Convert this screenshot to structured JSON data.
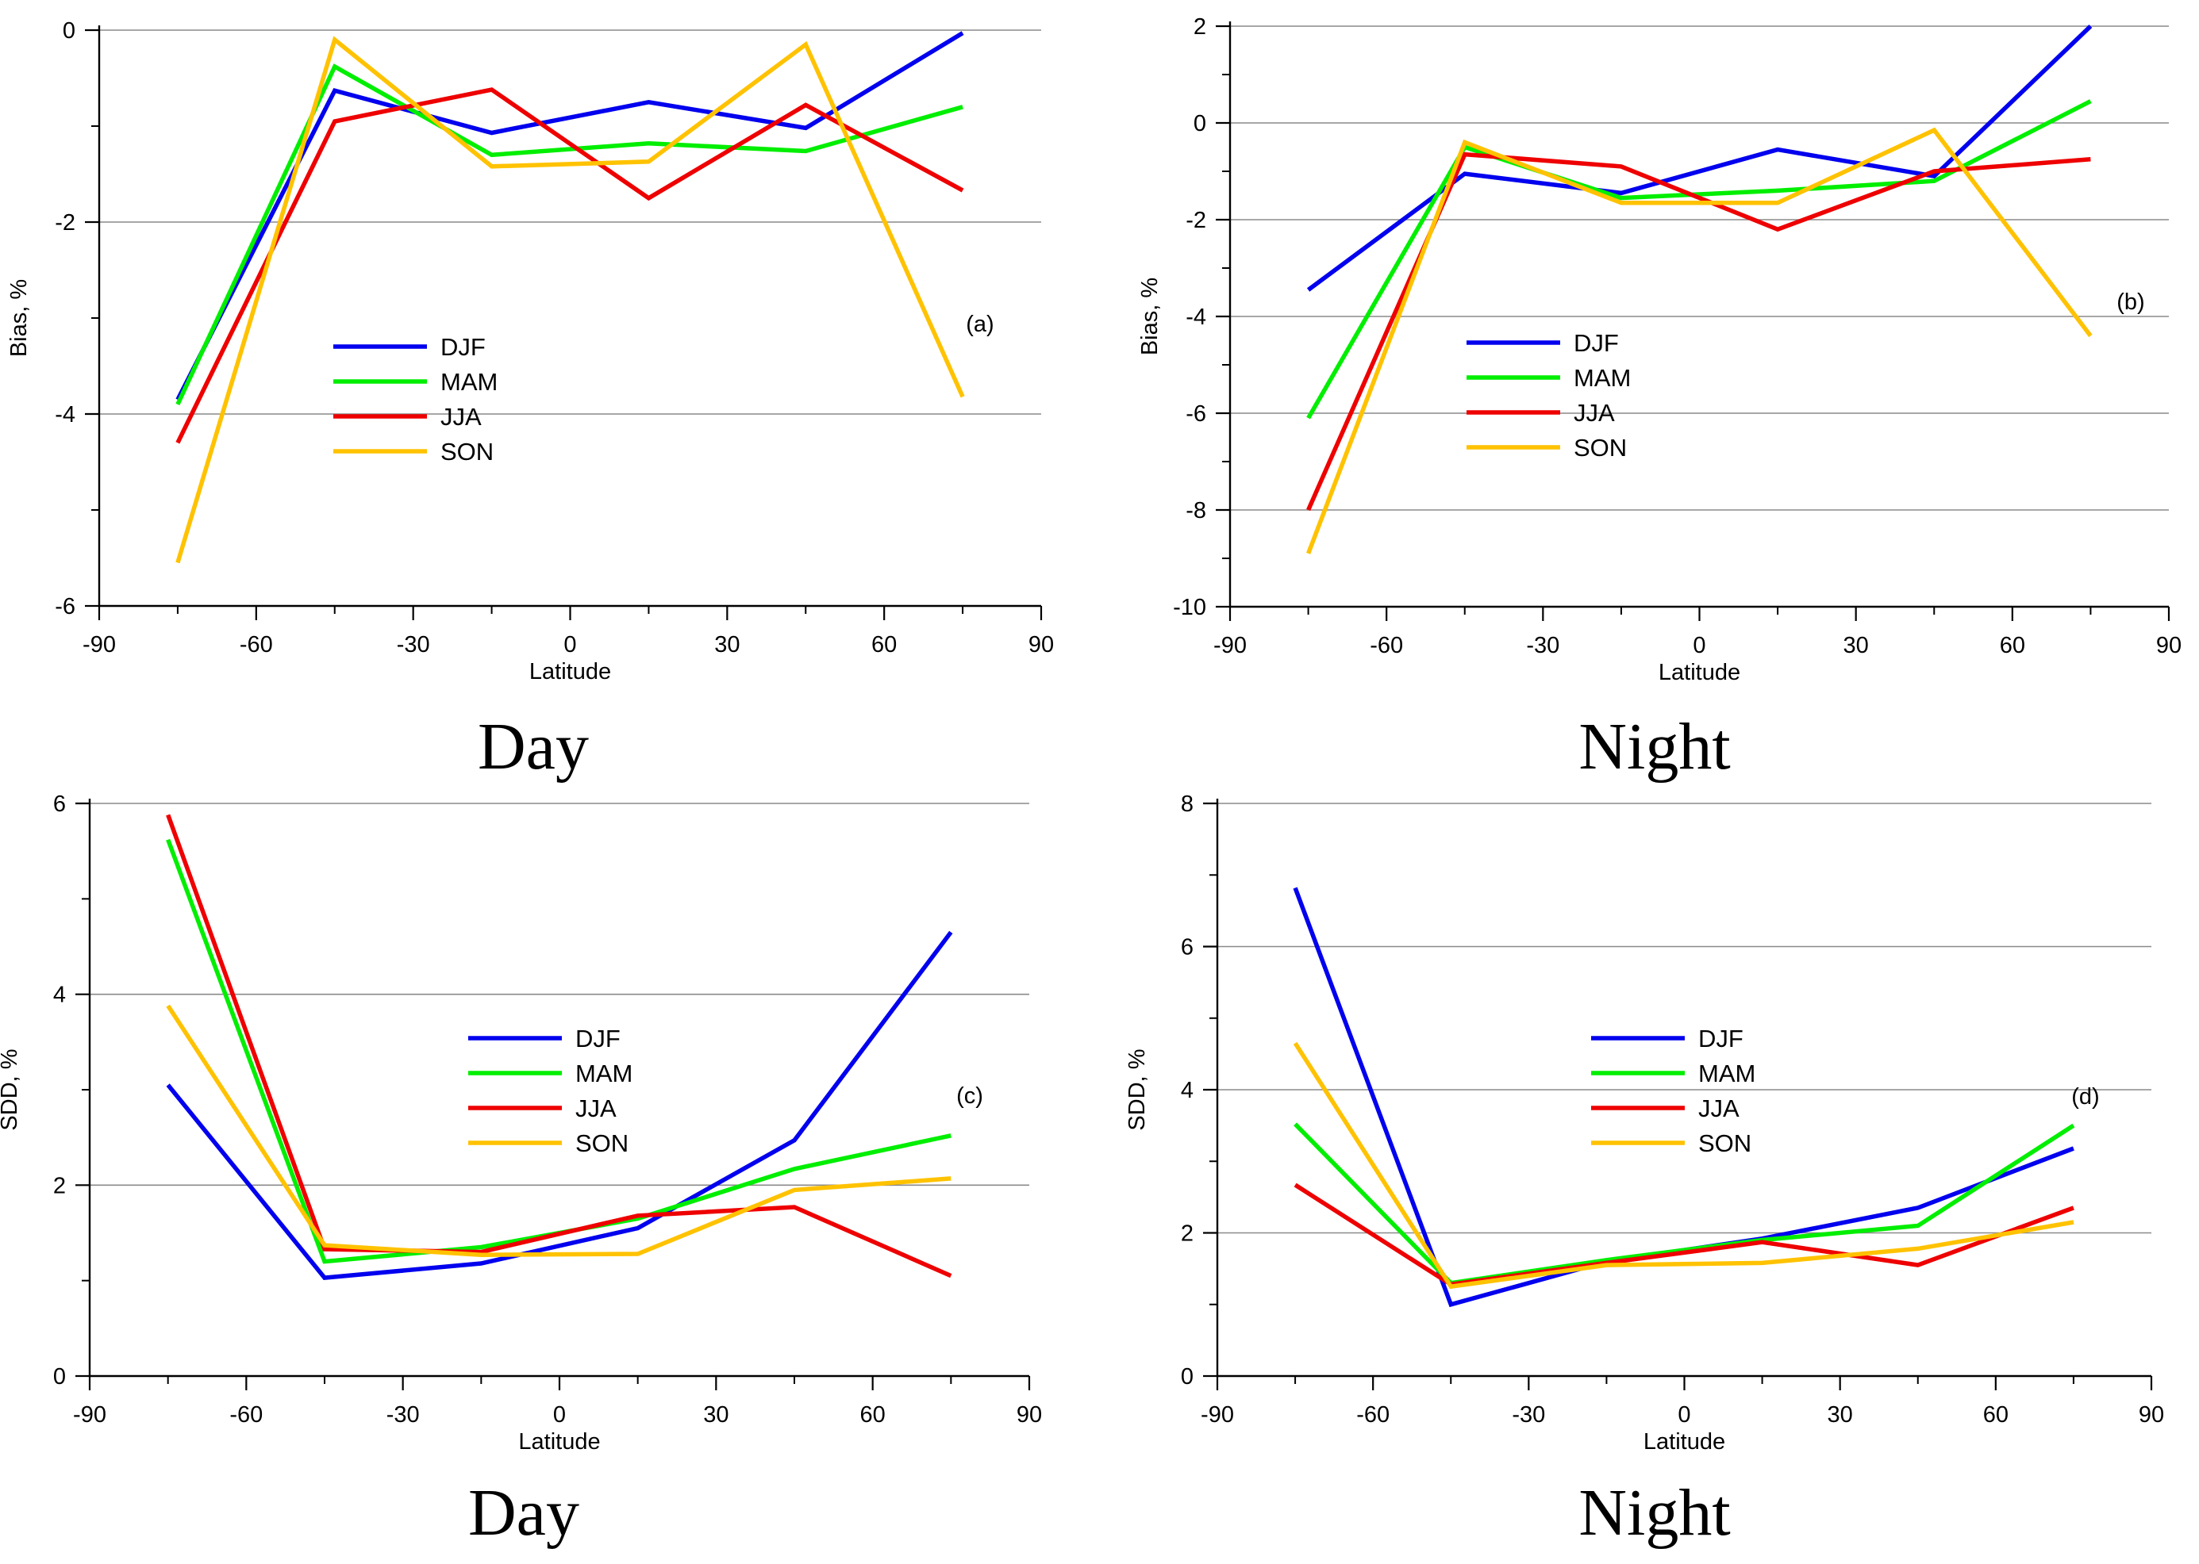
{
  "chart_data": [
    {
      "type": "line",
      "panel_label": "(a)",
      "caption": "Day",
      "xlabel": "Latitude",
      "ylabel": "Bias, %",
      "xlim": [
        -90,
        90
      ],
      "ylim": [
        -6,
        0
      ],
      "xticks": [
        "-90",
        "-60",
        "-30",
        "0",
        "30",
        "60",
        "90"
      ],
      "yticks": [
        "-6",
        "-4",
        "-2",
        "0"
      ],
      "gridlines": [
        -4,
        -2,
        0
      ],
      "minor_yticks": [
        -5,
        -3,
        -1
      ],
      "legend": "center-left",
      "x": [
        -75,
        -45,
        -15,
        15,
        45,
        75
      ],
      "series": [
        {
          "name": "DJF",
          "color": "#0000ee",
          "values": [
            -3.85,
            -0.63,
            -1.07,
            -0.75,
            -1.02,
            -0.03
          ]
        },
        {
          "name": "MAM",
          "color": "#00ee00",
          "values": [
            -3.9,
            -0.38,
            -1.3,
            -1.18,
            -1.26,
            -0.8
          ]
        },
        {
          "name": "JJA",
          "color": "#ee0000",
          "values": [
            -4.3,
            -0.95,
            -0.62,
            -1.75,
            -0.78,
            -1.67
          ]
        },
        {
          "name": "SON",
          "color": "#ffc200",
          "values": [
            -5.55,
            -0.1,
            -1.42,
            -1.37,
            -0.15,
            -3.82
          ]
        }
      ]
    },
    {
      "type": "line",
      "panel_label": "(b)",
      "caption": "Night",
      "xlabel": "Latitude",
      "ylabel": "Bias, %",
      "xlim": [
        -90,
        90
      ],
      "ylim": [
        -10,
        2
      ],
      "xticks": [
        "-90",
        "-60",
        "-30",
        "0",
        "30",
        "60",
        "90"
      ],
      "yticks": [
        "-10",
        "-8",
        "-6",
        "-4",
        "-2",
        "0",
        "2"
      ],
      "gridlines": [
        -8,
        -6,
        -4,
        -2,
        0,
        2
      ],
      "minor_yticks": [
        -9,
        -7,
        -5,
        -3,
        -1,
        1
      ],
      "legend": "center-left",
      "x": [
        -75,
        -45,
        -15,
        15,
        45,
        75
      ],
      "series": [
        {
          "name": "DJF",
          "color": "#0000ee",
          "values": [
            -3.45,
            -1.05,
            -1.45,
            -0.55,
            -1.1,
            2.0
          ]
        },
        {
          "name": "MAM",
          "color": "#00ee00",
          "values": [
            -6.1,
            -0.5,
            -1.55,
            -1.4,
            -1.2,
            0.45
          ]
        },
        {
          "name": "JJA",
          "color": "#ee0000",
          "values": [
            -8.0,
            -0.65,
            -0.9,
            -2.2,
            -1.0,
            -0.75
          ]
        },
        {
          "name": "SON",
          "color": "#ffc200",
          "values": [
            -8.9,
            -0.4,
            -1.65,
            -1.65,
            -0.15,
            -4.4
          ]
        }
      ]
    },
    {
      "type": "line",
      "panel_label": "(c)",
      "caption": "Day",
      "xlabel": "Latitude",
      "ylabel": "SDD, %",
      "xlim": [
        -90,
        90
      ],
      "ylim": [
        0,
        6
      ],
      "xticks": [
        "-90",
        "-60",
        "-30",
        "0",
        "30",
        "60",
        "90"
      ],
      "yticks": [
        "0",
        "2",
        "4",
        "6"
      ],
      "gridlines": [
        2,
        4,
        6
      ],
      "minor_yticks": [
        1,
        3,
        5
      ],
      "legend": "center",
      "x": [
        -75,
        -45,
        -15,
        15,
        45,
        75
      ],
      "series": [
        {
          "name": "DJF",
          "color": "#0000ee",
          "values": [
            3.05,
            1.03,
            1.18,
            1.55,
            2.47,
            4.65
          ]
        },
        {
          "name": "MAM",
          "color": "#00ee00",
          "values": [
            5.62,
            1.2,
            1.35,
            1.65,
            2.17,
            2.52
          ]
        },
        {
          "name": "JJA",
          "color": "#ee0000",
          "values": [
            5.88,
            1.33,
            1.3,
            1.68,
            1.77,
            1.05
          ]
        },
        {
          "name": "SON",
          "color": "#ffc200",
          "values": [
            3.88,
            1.37,
            1.27,
            1.28,
            1.95,
            2.07
          ]
        }
      ]
    },
    {
      "type": "line",
      "panel_label": "(d)",
      "caption": "Night",
      "xlabel": "Latitude",
      "ylabel": "SDD, %",
      "xlim": [
        -90,
        90
      ],
      "ylim": [
        0,
        8
      ],
      "xticks": [
        "-90",
        "-60",
        "-30",
        "0",
        "30",
        "60",
        "90"
      ],
      "yticks": [
        "0",
        "2",
        "4",
        "6",
        "8"
      ],
      "gridlines": [
        2,
        4,
        6,
        8
      ],
      "minor_yticks": [
        1,
        3,
        5,
        7
      ],
      "legend": "center",
      "x": [
        -75,
        -45,
        -15,
        15,
        45,
        75
      ],
      "series": [
        {
          "name": "DJF",
          "color": "#0000ee",
          "values": [
            6.82,
            1.0,
            1.6,
            1.92,
            2.35,
            3.18
          ]
        },
        {
          "name": "MAM",
          "color": "#00ee00",
          "values": [
            3.52,
            1.3,
            1.62,
            1.9,
            2.1,
            3.5
          ]
        },
        {
          "name": "JJA",
          "color": "#ee0000",
          "values": [
            2.67,
            1.28,
            1.58,
            1.87,
            1.55,
            2.35
          ]
        },
        {
          "name": "SON",
          "color": "#ffc200",
          "values": [
            4.65,
            1.25,
            1.55,
            1.58,
            1.78,
            2.15
          ]
        }
      ]
    }
  ]
}
